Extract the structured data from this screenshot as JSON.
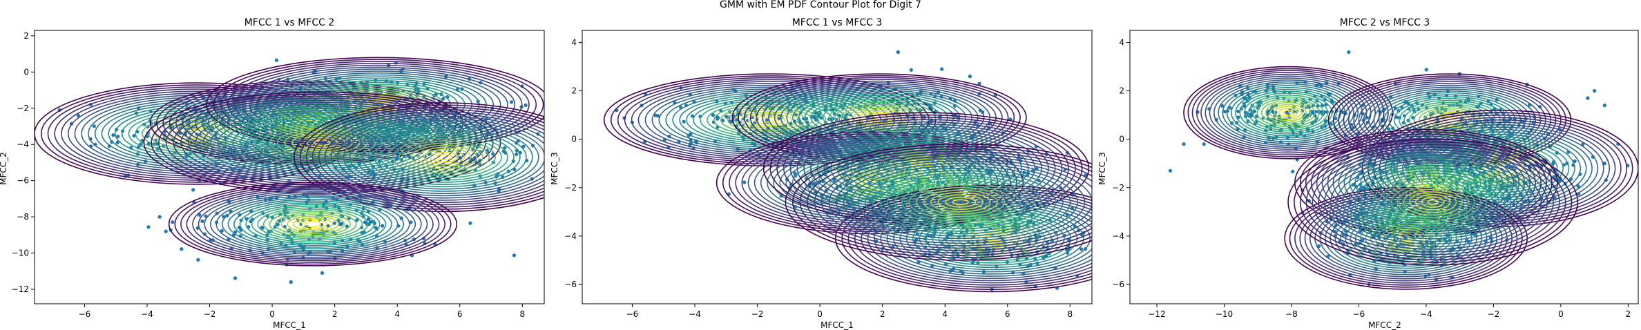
{
  "figure": {
    "suptitle": "GMM with EM PDF Contour Plot for Digit 7"
  },
  "chart_data": [
    {
      "type": "scatter",
      "title": "MFCC 1 vs MFCC 2",
      "xlabel": "MFCC_1",
      "ylabel": "MFCC_2",
      "xlim": [
        -7.6,
        8.7
      ],
      "ylim": [
        -12.8,
        2.3
      ],
      "xticks": [
        -6,
        -4,
        -2,
        0,
        2,
        4,
        6,
        8
      ],
      "yticks": [
        -12,
        -10,
        -8,
        -6,
        -4,
        -2,
        0,
        2
      ],
      "grid": false,
      "clusters": [
        {
          "mean": [
            -2.4,
            -3.4
          ],
          "sd": [
            1.6,
            0.9
          ],
          "n": 170
        },
        {
          "mean": [
            1.1,
            -2.8
          ],
          "sd": [
            1.6,
            0.8
          ],
          "n": 130
        },
        {
          "mean": [
            3.4,
            -1.8
          ],
          "sd": [
            1.7,
            0.9
          ],
          "n": 200
        },
        {
          "mean": [
            1.6,
            -3.9
          ],
          "sd": [
            1.9,
            0.9
          ],
          "n": 190
        },
        {
          "mean": [
            5.5,
            -4.7
          ],
          "sd": [
            1.5,
            0.9
          ],
          "n": 150
        },
        {
          "mean": [
            1.3,
            -8.4
          ],
          "sd": [
            1.9,
            1.0
          ],
          "n": 220
        }
      ],
      "outliers": [
        [
          -6.8,
          -2.1
        ],
        [
          -6.2,
          -2.4
        ],
        [
          -5.8,
          -1.8
        ],
        [
          -5.8,
          -4.1
        ],
        [
          -4.6,
          -5.7
        ],
        [
          -3.6,
          -8.0
        ],
        [
          -3.4,
          -8.8
        ],
        [
          -2.5,
          -7.2
        ],
        [
          0.6,
          -11.6
        ],
        [
          1.6,
          -11.1
        ]
      ],
      "components": [
        {
          "mean": [
            -2.4,
            -3.4
          ],
          "rx": [
            0.25,
            5.2
          ],
          "ry": [
            0.15,
            2.8
          ]
        },
        {
          "mean": [
            1.1,
            -2.8
          ],
          "rx": [
            0.25,
            5.0
          ],
          "ry": [
            0.15,
            2.3
          ]
        },
        {
          "mean": [
            3.4,
            -1.8
          ],
          "rx": [
            0.25,
            5.5
          ],
          "ry": [
            0.15,
            2.6
          ]
        },
        {
          "mean": [
            1.6,
            -3.9
          ],
          "rx": [
            0.25,
            5.7
          ],
          "ry": [
            0.15,
            2.8
          ]
        },
        {
          "mean": [
            5.5,
            -4.7
          ],
          "rx": [
            0.25,
            4.8
          ],
          "ry": [
            0.15,
            3.0
          ]
        },
        {
          "mean": [
            1.3,
            -8.4
          ],
          "rx": [
            0.25,
            4.6
          ],
          "ry": [
            0.15,
            2.3
          ]
        }
      ]
    },
    {
      "type": "scatter",
      "title": "MFCC 1 vs MFCC 3",
      "xlabel": "MFCC_1",
      "ylabel": "MFCC_3",
      "xlim": [
        -7.6,
        8.7
      ],
      "ylim": [
        -6.8,
        4.5
      ],
      "xticks": [
        -6,
        -4,
        -2,
        0,
        2,
        4,
        6,
        8
      ],
      "yticks": [
        -6,
        -4,
        -2,
        0,
        2,
        4
      ],
      "grid": false,
      "clusters": [
        {
          "mean": [
            -1.6,
            0.8
          ],
          "sd": [
            1.5,
            0.6
          ],
          "n": 200
        },
        {
          "mean": [
            1.9,
            0.9
          ],
          "sd": [
            1.7,
            0.6
          ],
          "n": 150
        },
        {
          "mean": [
            1.6,
            -1.8
          ],
          "sd": [
            1.6,
            0.7
          ],
          "n": 140
        },
        {
          "mean": [
            3.4,
            -1.2
          ],
          "sd": [
            1.7,
            0.8
          ],
          "n": 210
        },
        {
          "mean": [
            5.5,
            -4.1
          ],
          "sd": [
            1.5,
            0.7
          ],
          "n": 200
        },
        {
          "mean": [
            4.5,
            -2.6
          ],
          "sd": [
            1.6,
            0.8
          ],
          "n": 150
        }
      ],
      "outliers": [
        [
          -6.5,
          1.2
        ],
        [
          -5.7,
          1.4
        ],
        [
          -6.0,
          0.7
        ],
        [
          -5.6,
          -0.1
        ],
        [
          2.5,
          3.6
        ],
        [
          3.9,
          2.9
        ],
        [
          4.8,
          2.6
        ],
        [
          5.1,
          2.3
        ],
        [
          5.5,
          -6.2
        ],
        [
          6.6,
          -5.9
        ]
      ],
      "components": [
        {
          "mean": [
            -1.6,
            0.8
          ],
          "rx": [
            0.25,
            5.3
          ],
          "ry": [
            0.1,
            1.9
          ]
        },
        {
          "mean": [
            1.9,
            0.9
          ],
          "rx": [
            0.25,
            4.7
          ],
          "ry": [
            0.1,
            1.8
          ]
        },
        {
          "mean": [
            1.6,
            -1.8
          ],
          "rx": [
            0.25,
            4.9
          ],
          "ry": [
            0.1,
            2.1
          ]
        },
        {
          "mean": [
            3.4,
            -1.2
          ],
          "rx": [
            0.25,
            5.2
          ],
          "ry": [
            0.1,
            2.3
          ]
        },
        {
          "mean": [
            5.5,
            -4.1
          ],
          "rx": [
            0.25,
            5.0
          ],
          "ry": [
            0.1,
            2.2
          ]
        },
        {
          "mean": [
            4.5,
            -2.6
          ],
          "rx": [
            0.25,
            5.6
          ],
          "ry": [
            0.1,
            2.4
          ]
        }
      ]
    },
    {
      "type": "scatter",
      "title": "MFCC 2 vs MFCC 3",
      "xlabel": "MFCC_2",
      "ylabel": "MFCC_3",
      "xlim": [
        -12.8,
        2.3
      ],
      "ylim": [
        -6.8,
        4.5
      ],
      "xticks": [
        -12,
        -10,
        -8,
        -6,
        -4,
        -2,
        0,
        2
      ],
      "yticks": [
        -6,
        -4,
        -2,
        0,
        2,
        4
      ],
      "grid": false,
      "clusters": [
        {
          "mean": [
            -8.1,
            1.1
          ],
          "sd": [
            1.0,
            0.6
          ],
          "n": 200
        },
        {
          "mean": [
            -3.3,
            0.8
          ],
          "sd": [
            1.3,
            0.6
          ],
          "n": 200
        },
        {
          "mean": [
            -1.8,
            -1.2
          ],
          "sd": [
            1.3,
            0.8
          ],
          "n": 180
        },
        {
          "mean": [
            -4.0,
            -1.8
          ],
          "sd": [
            1.4,
            0.8
          ],
          "n": 170
        },
        {
          "mean": [
            -4.6,
            -4.1
          ],
          "sd": [
            1.1,
            0.6
          ],
          "n": 200
        },
        {
          "mean": [
            -3.8,
            -2.6
          ],
          "sd": [
            1.3,
            0.9
          ],
          "n": 150
        }
      ],
      "outliers": [
        [
          -11.6,
          -1.3
        ],
        [
          -11.2,
          -0.2
        ],
        [
          -10.6,
          -0.2
        ],
        [
          -6.3,
          3.6
        ],
        [
          1.0,
          2.0
        ],
        [
          1.3,
          1.4
        ],
        [
          0.8,
          1.7
        ],
        [
          1.7,
          -0.2
        ],
        [
          -5.7,
          -6.0
        ],
        [
          -3.7,
          -5.8
        ]
      ],
      "components": [
        {
          "mean": [
            -8.1,
            1.1
          ],
          "rx": [
            0.15,
            3.1
          ],
          "ry": [
            0.1,
            1.9
          ]
        },
        {
          "mean": [
            -3.3,
            0.8
          ],
          "rx": [
            0.15,
            3.6
          ],
          "ry": [
            0.1,
            1.9
          ]
        },
        {
          "mean": [
            -1.8,
            -1.2
          ],
          "rx": [
            0.15,
            4.1
          ],
          "ry": [
            0.1,
            2.4
          ]
        },
        {
          "mean": [
            -4.0,
            -1.8
          ],
          "rx": [
            0.15,
            3.9
          ],
          "ry": [
            0.1,
            2.2
          ]
        },
        {
          "mean": [
            -4.6,
            -4.1
          ],
          "rx": [
            0.15,
            3.6
          ],
          "ry": [
            0.1,
            2.1
          ]
        },
        {
          "mean": [
            -3.8,
            -2.6
          ],
          "rx": [
            0.15,
            4.3
          ],
          "ry": [
            0.1,
            2.6
          ]
        }
      ]
    }
  ]
}
